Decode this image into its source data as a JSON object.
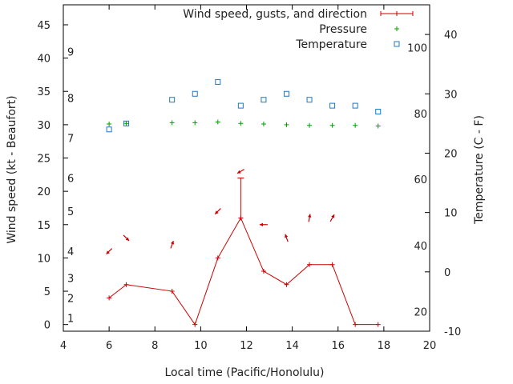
{
  "chart_data": {
    "type": "line",
    "xlabel": "Local time (Pacific/Honolulu)",
    "ylabel_left": "Wind speed (kt - Beaufort)",
    "ylabel_right": "Temperature (C - F)",
    "xlim": [
      4,
      20
    ],
    "ylim_left": [
      -1,
      48
    ],
    "ylim_right": [
      -10,
      45
    ],
    "x_ticks": [
      4,
      6,
      8,
      10,
      12,
      14,
      16,
      18,
      20
    ],
    "y_left_ticks": [
      0,
      5,
      10,
      15,
      20,
      25,
      30,
      35,
      40,
      45
    ],
    "y_right_ticks_c": [
      -10,
      0,
      10,
      20,
      30,
      40
    ],
    "fahrenheit_ticks": [
      {
        "label": "20",
        "c": -6.7
      },
      {
        "label": "40",
        "c": 4.4
      },
      {
        "label": "60",
        "c": 15.6
      },
      {
        "label": "80",
        "c": 26.7
      },
      {
        "label": "100",
        "c": 37.8
      }
    ],
    "beaufort_ticks": [
      {
        "label": "1",
        "kt": 1
      },
      {
        "label": "2",
        "kt": 4
      },
      {
        "label": "3",
        "kt": 7
      },
      {
        "label": "4",
        "kt": 11
      },
      {
        "label": "5",
        "kt": 17
      },
      {
        "label": "6",
        "kt": 22
      },
      {
        "label": "7",
        "kt": 28
      },
      {
        "label": "8",
        "kt": 34
      },
      {
        "label": "9",
        "kt": 41
      }
    ],
    "legend": {
      "placement": "top-right",
      "entries": [
        "Wind speed, gusts, and direction",
        "Pressure",
        "Temperature"
      ]
    },
    "series": [
      {
        "name": "Wind speed, gusts, and direction",
        "color": "#cc0000",
        "points": [
          {
            "x": 6.0,
            "speed": 4,
            "gust": null,
            "dir": 45
          },
          {
            "x": 6.75,
            "speed": 6,
            "gust": null,
            "dir": 315
          },
          {
            "x": 8.75,
            "speed": 5,
            "gust": null,
            "dir": 200
          },
          {
            "x": 9.75,
            "speed": 0,
            "gust": null,
            "dir": null
          },
          {
            "x": 10.75,
            "speed": 10,
            "gust": null,
            "dir": 45
          },
          {
            "x": 11.75,
            "speed": 16,
            "gust": 22,
            "dir": 60
          },
          {
            "x": 12.75,
            "speed": 8,
            "gust": null,
            "dir": 90
          },
          {
            "x": 13.75,
            "speed": 6,
            "gust": null,
            "dir": 160
          },
          {
            "x": 14.75,
            "speed": 9,
            "gust": null,
            "dir": 190
          },
          {
            "x": 15.75,
            "speed": 9,
            "gust": null,
            "dir": 210
          },
          {
            "x": 16.75,
            "speed": 0,
            "gust": null,
            "dir": null
          },
          {
            "x": 17.75,
            "speed": 0,
            "gust": null,
            "dir": null
          }
        ]
      },
      {
        "name": "Pressure",
        "color": "#00a000",
        "points": [
          {
            "x": 6.0,
            "y": 30.1
          },
          {
            "x": 6.75,
            "y": 30.2
          },
          {
            "x": 8.75,
            "y": 30.3
          },
          {
            "x": 9.75,
            "y": 30.3
          },
          {
            "x": 10.75,
            "y": 30.4
          },
          {
            "x": 11.75,
            "y": 30.2
          },
          {
            "x": 12.75,
            "y": 30.1
          },
          {
            "x": 13.75,
            "y": 30.0
          },
          {
            "x": 14.75,
            "y": 29.9
          },
          {
            "x": 15.75,
            "y": 29.9
          },
          {
            "x": 16.75,
            "y": 29.9
          },
          {
            "x": 17.75,
            "y": 29.8
          }
        ]
      },
      {
        "name": "Temperature",
        "color": "#1e78c8",
        "points": [
          {
            "x": 6.0,
            "c": 24.0
          },
          {
            "x": 6.75,
            "c": 25.0
          },
          {
            "x": 8.75,
            "c": 29.0
          },
          {
            "x": 9.75,
            "c": 30.0
          },
          {
            "x": 10.75,
            "c": 32.0
          },
          {
            "x": 11.75,
            "c": 28.0
          },
          {
            "x": 12.75,
            "c": 29.0
          },
          {
            "x": 13.75,
            "c": 30.0
          },
          {
            "x": 14.75,
            "c": 29.0
          },
          {
            "x": 15.75,
            "c": 28.0
          },
          {
            "x": 16.75,
            "c": 28.0
          },
          {
            "x": 17.75,
            "c": 27.0
          }
        ]
      }
    ]
  }
}
